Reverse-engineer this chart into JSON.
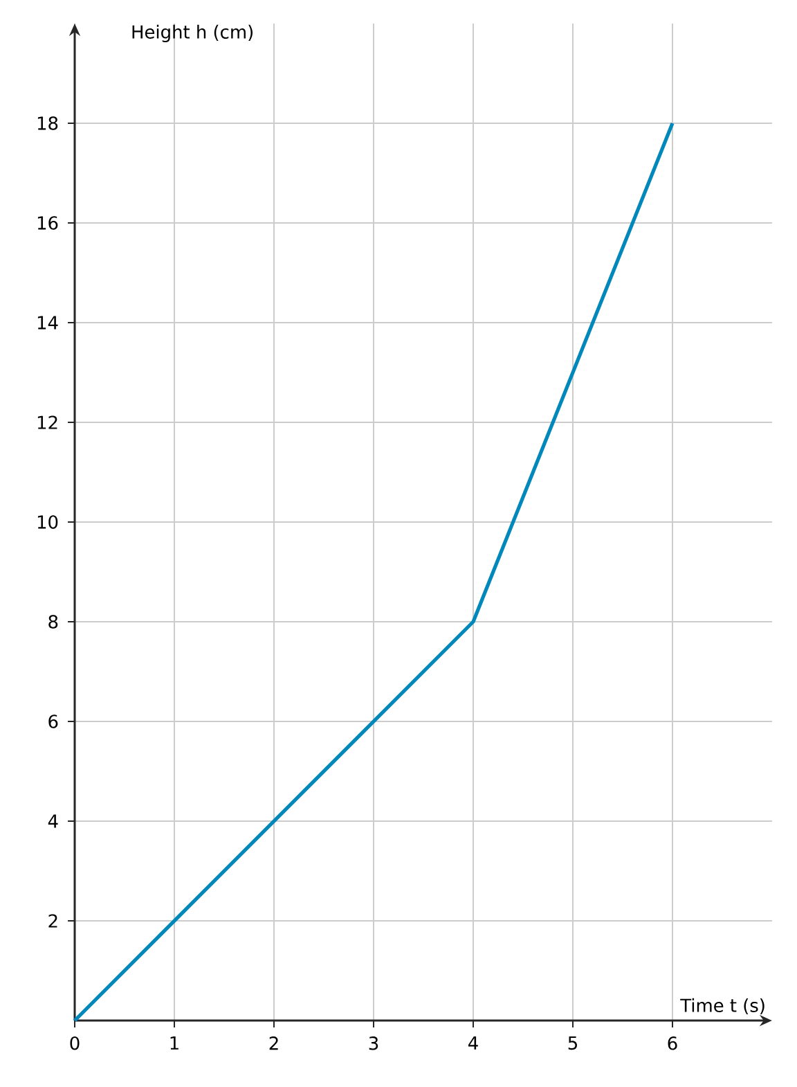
{
  "chart_data": {
    "type": "line",
    "xlabel": "Time t (s)",
    "ylabel": "Height h (cm)",
    "x": [
      0,
      4,
      6
    ],
    "series": [
      {
        "color": "#0088bb",
        "values": [
          0,
          8,
          18
        ]
      }
    ],
    "xlim": [
      0,
      7
    ],
    "ylim": [
      0,
      20
    ],
    "xticks": [
      0,
      1,
      2,
      3,
      4,
      5,
      6
    ],
    "yticks": [
      2,
      4,
      6,
      8,
      10,
      12,
      14,
      16,
      18
    ],
    "grid": true,
    "marker": "none",
    "line_style": "solid"
  }
}
